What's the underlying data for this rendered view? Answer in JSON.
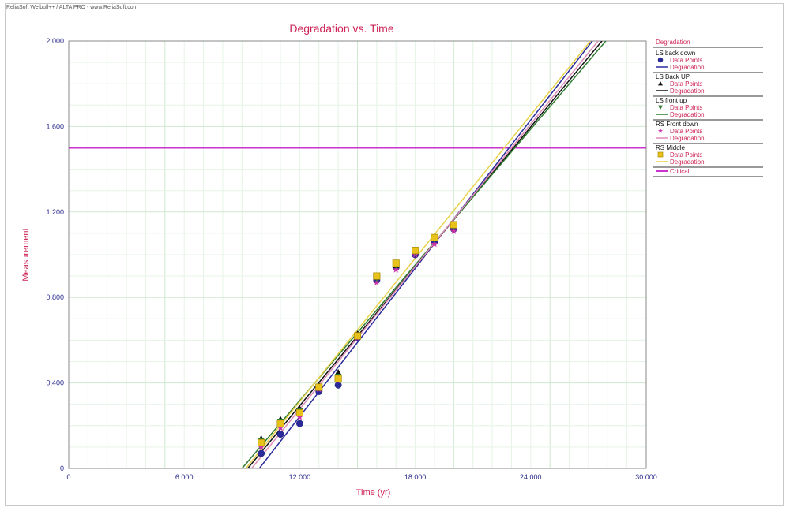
{
  "window": {
    "caption": "ReliaSoft Weibull++ / ALTA PRO - www.ReliaSoft.com"
  },
  "colors": {
    "title": "#cc2255",
    "tick": "#2a2a8a",
    "grid_major": "#cfe8cf",
    "grid_minor": "#e6f3e6",
    "critical": "#cc33cc"
  },
  "chart_data": {
    "type": "scatter",
    "title": "Degradation vs. Time",
    "xlabel": "Time (yr)",
    "ylabel": "Measurement",
    "xlim": [
      0,
      30
    ],
    "ylim": [
      0,
      2
    ],
    "xticks": [
      {
        "v": 0,
        "label": "0"
      },
      {
        "v": 6,
        "label": "6.000"
      },
      {
        "v": 12,
        "label": "12.000"
      },
      {
        "v": 18,
        "label": "18.000"
      },
      {
        "v": 24,
        "label": "24.000"
      },
      {
        "v": 30,
        "label": "30.000"
      }
    ],
    "yticks": [
      {
        "v": 0,
        "label": "0"
      },
      {
        "v": 0.4,
        "label": "0.400"
      },
      {
        "v": 0.8,
        "label": "0.800"
      },
      {
        "v": 1.2,
        "label": "1.200"
      },
      {
        "v": 1.6,
        "label": "1.600"
      },
      {
        "v": 2.0,
        "label": "2.000"
      }
    ],
    "grid": true,
    "legend_position": "right",
    "legend_header": "Degradation",
    "series": [
      {
        "name": "LS back down",
        "marker": "circle",
        "color": "#2a2a9a",
        "line_color": "#2a2a9a",
        "points": [
          [
            10,
            0.07
          ],
          [
            11,
            0.16
          ],
          [
            12,
            0.21
          ],
          [
            13,
            0.36
          ],
          [
            14,
            0.39
          ],
          [
            15,
            0.61
          ],
          [
            16,
            0.88
          ],
          [
            17,
            0.94
          ],
          [
            18,
            1.0
          ],
          [
            19,
            1.06
          ],
          [
            20,
            1.12
          ]
        ],
        "fit": [
          [
            9.9,
            0
          ],
          [
            27.2,
            2.0
          ]
        ]
      },
      {
        "name": "LS Back UP",
        "marker": "triangle-up",
        "color": "#111111",
        "line_color": "#111111",
        "points": [
          [
            10,
            0.14
          ],
          [
            11,
            0.23
          ],
          [
            12,
            0.28
          ],
          [
            13,
            0.39
          ],
          [
            14,
            0.45
          ],
          [
            15,
            0.63
          ],
          [
            16,
            0.9
          ],
          [
            17,
            0.95
          ],
          [
            18,
            1.02
          ],
          [
            19,
            1.08
          ],
          [
            20,
            1.14
          ]
        ],
        "fit": [
          [
            9.3,
            0
          ],
          [
            27.7,
            2.0
          ]
        ]
      },
      {
        "name": "LS front up",
        "marker": "triangle-down",
        "color": "#2e7a2e",
        "line_color": "#2e7a2e",
        "points": [
          [
            10,
            0.13
          ],
          [
            11,
            0.22
          ],
          [
            12,
            0.27
          ],
          [
            13,
            0.38
          ],
          [
            14,
            0.43
          ],
          [
            15,
            0.62
          ],
          [
            16,
            0.89
          ],
          [
            17,
            0.95
          ],
          [
            18,
            1.01
          ],
          [
            19,
            1.07
          ],
          [
            20,
            1.13
          ]
        ],
        "fit": [
          [
            9.0,
            0
          ],
          [
            27.9,
            2.0
          ]
        ]
      },
      {
        "name": "RS Front down",
        "marker": "star",
        "color": "#cc33aa",
        "line_color": "#e08ab8",
        "points": [
          [
            10,
            0.1
          ],
          [
            11,
            0.19
          ],
          [
            12,
            0.24
          ],
          [
            13,
            0.37
          ],
          [
            14,
            0.41
          ],
          [
            15,
            0.61
          ],
          [
            16,
            0.87
          ],
          [
            17,
            0.93
          ],
          [
            18,
            1.0
          ],
          [
            19,
            1.05
          ],
          [
            20,
            1.11
          ]
        ],
        "fit": [
          [
            9.5,
            0
          ],
          [
            27.5,
            2.0
          ]
        ]
      },
      {
        "name": "RS Middle",
        "marker": "square",
        "color": "#e8c21a",
        "line_color": "#e8d24a",
        "points": [
          [
            10,
            0.12
          ],
          [
            11,
            0.21
          ],
          [
            12,
            0.26
          ],
          [
            13,
            0.38
          ],
          [
            14,
            0.42
          ],
          [
            15,
            0.62
          ],
          [
            16,
            0.9
          ],
          [
            17,
            0.96
          ],
          [
            18,
            1.02
          ],
          [
            19,
            1.08
          ],
          [
            20,
            1.14
          ]
        ],
        "fit": [
          [
            9.2,
            0
          ],
          [
            27.1,
            2.0
          ]
        ]
      }
    ],
    "legend_labels": {
      "points": "Data Points",
      "fit": "Degradation"
    },
    "critical": {
      "name": "Critical",
      "value": 1.5
    }
  }
}
